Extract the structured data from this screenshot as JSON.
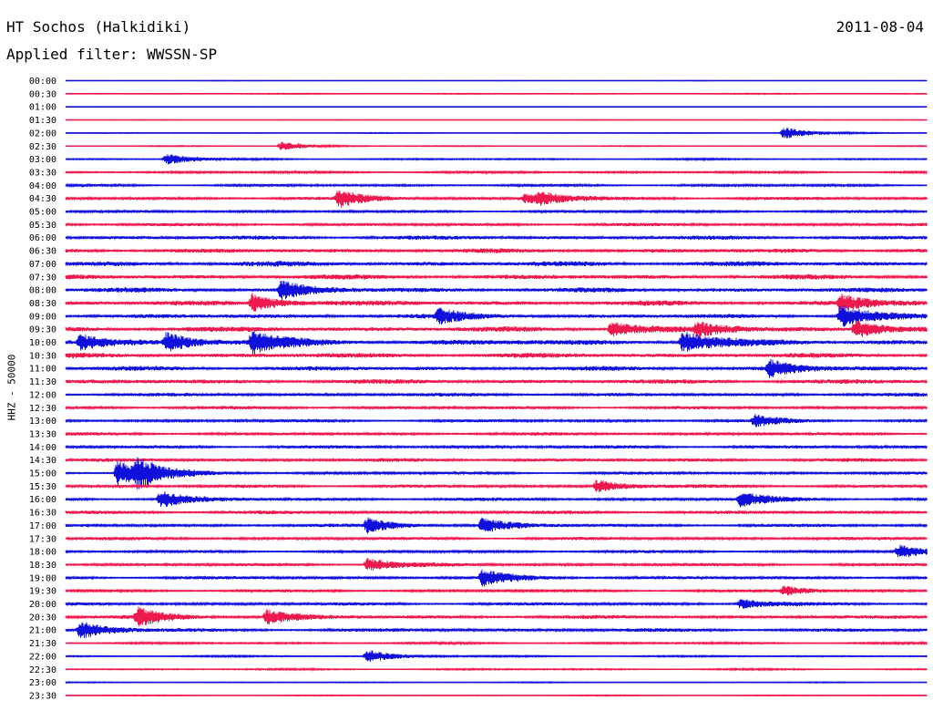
{
  "header": {
    "station": "HT Sochos (Halkidiki)",
    "date": "2011-08-04",
    "filter": "Applied filter: WWSSN-SP"
  },
  "chart_data": {
    "type": "line",
    "title": "HT Sochos (Halkidiki)",
    "subtitle": "Applied filter: WWSSN-SP",
    "ylabel": "HHZ - 50000",
    "xlabel": "",
    "row_labels": [
      "00:00",
      "00:30",
      "01:00",
      "01:30",
      "02:00",
      "02:30",
      "03:00",
      "03:30",
      "04:00",
      "04:30",
      "05:00",
      "05:30",
      "06:00",
      "06:30",
      "07:00",
      "07:30",
      "08:00",
      "08:30",
      "09:00",
      "09:30",
      "10:00",
      "10:30",
      "11:00",
      "11:30",
      "12:00",
      "12:30",
      "13:00",
      "13:30",
      "14:00",
      "14:30",
      "15:00",
      "15:30",
      "16:00",
      "16:30",
      "17:00",
      "17:30",
      "18:00",
      "18:30",
      "19:00",
      "19:30",
      "20:00",
      "20:30",
      "21:00",
      "21:30",
      "22:00",
      "22:30",
      "23:00",
      "23:30"
    ],
    "noise_amplitude": [
      0.3,
      0.5,
      0.2,
      0.2,
      0.4,
      0.5,
      0.8,
      1.2,
      1.2,
      1.6,
      1.4,
      1.6,
      2.0,
      2.2,
      2.5,
      2.4,
      2.3,
      2.4,
      2.2,
      2.6,
      2.8,
      2.4,
      2.2,
      2.2,
      1.8,
      1.6,
      1.4,
      1.6,
      1.6,
      1.8,
      1.4,
      1.6,
      1.6,
      1.8,
      1.6,
      1.6,
      1.4,
      1.6,
      1.6,
      1.4,
      1.6,
      1.8,
      1.8,
      1.0,
      0.8,
      0.8,
      0.5,
      0.5
    ],
    "events": [
      {
        "row": 4,
        "minute": 25,
        "amplitude": 7
      },
      {
        "row": 5,
        "minute": 7.5,
        "amplitude": 5
      },
      {
        "row": 6,
        "minute": 3.5,
        "amplitude": 6
      },
      {
        "row": 9,
        "minute": 9.5,
        "amplitude": 9
      },
      {
        "row": 9,
        "minute": 16,
        "amplitude": 5
      },
      {
        "row": 9,
        "minute": 16.5,
        "amplitude": 5
      },
      {
        "row": 16,
        "minute": 7.5,
        "amplitude": 10
      },
      {
        "row": 17,
        "minute": 6.5,
        "amplitude": 10
      },
      {
        "row": 17,
        "minute": 27,
        "amplitude": 9
      },
      {
        "row": 18,
        "minute": 13,
        "amplitude": 7
      },
      {
        "row": 18,
        "minute": 27,
        "amplitude": 12
      },
      {
        "row": 19,
        "minute": 19,
        "amplitude": 8
      },
      {
        "row": 19,
        "minute": 22,
        "amplitude": 7
      },
      {
        "row": 19,
        "minute": 27.5,
        "amplitude": 10
      },
      {
        "row": 20,
        "minute": 0.5,
        "amplitude": 8
      },
      {
        "row": 20,
        "minute": 3.5,
        "amplitude": 10
      },
      {
        "row": 20,
        "minute": 6.5,
        "amplitude": 12
      },
      {
        "row": 20,
        "minute": 21.5,
        "amplitude": 12
      },
      {
        "row": 22,
        "minute": 24.5,
        "amplitude": 9
      },
      {
        "row": 26,
        "minute": 24,
        "amplitude": 6
      },
      {
        "row": 30,
        "minute": 1.8,
        "amplitude": 14
      },
      {
        "row": 30,
        "minute": 2.5,
        "amplitude": 12
      },
      {
        "row": 31,
        "minute": 18.5,
        "amplitude": 7
      },
      {
        "row": 32,
        "minute": 3.3,
        "amplitude": 9
      },
      {
        "row": 32,
        "minute": 23.5,
        "amplitude": 8
      },
      {
        "row": 34,
        "minute": 10.5,
        "amplitude": 8
      },
      {
        "row": 34,
        "minute": 14.5,
        "amplitude": 8
      },
      {
        "row": 36,
        "minute": 29,
        "amplitude": 7
      },
      {
        "row": 37,
        "minute": 10.5,
        "amplitude": 7
      },
      {
        "row": 38,
        "minute": 14.5,
        "amplitude": 9
      },
      {
        "row": 39,
        "minute": 25,
        "amplitude": 5
      },
      {
        "row": 40,
        "minute": 23.5,
        "amplitude": 5
      },
      {
        "row": 41,
        "minute": 2.5,
        "amplitude": 10
      },
      {
        "row": 41,
        "minute": 7,
        "amplitude": 8
      },
      {
        "row": 42,
        "minute": 0.5,
        "amplitude": 9
      },
      {
        "row": 44,
        "minute": 10.5,
        "amplitude": 7
      }
    ]
  },
  "colors": {
    "blue": "#1010dd",
    "red": "#ee1a4e"
  }
}
